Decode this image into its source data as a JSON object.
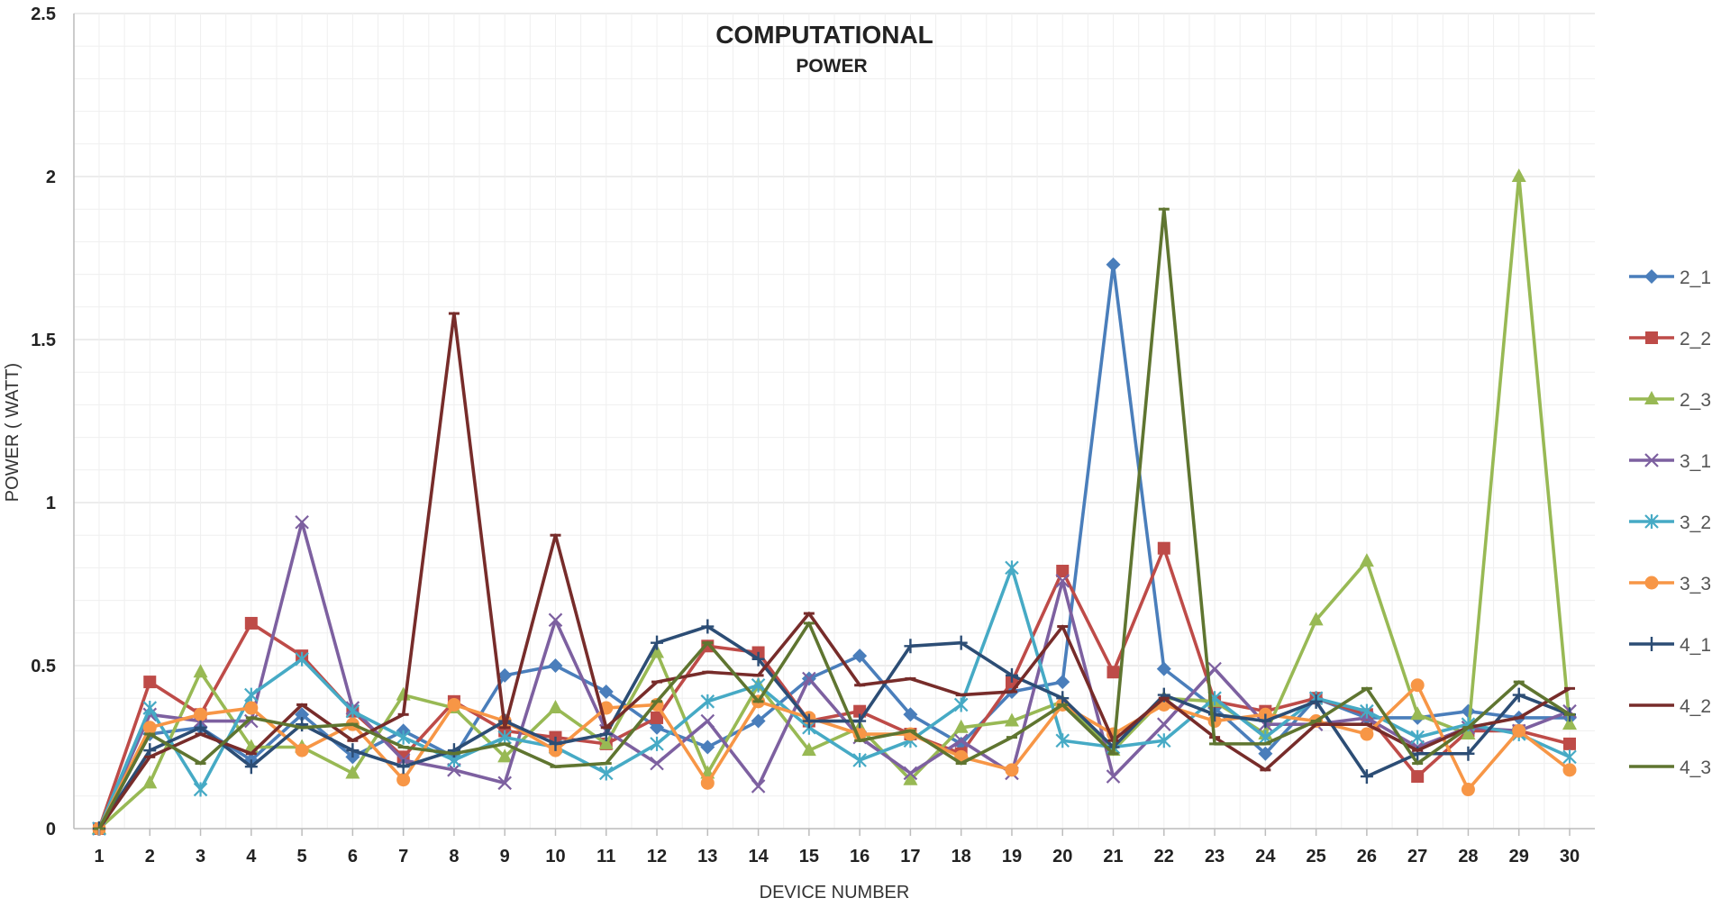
{
  "chart_data": {
    "type": "line",
    "title": "COMPUTATIONAL",
    "subtitle": "POWER",
    "xlabel": "DEVICE NUMBER",
    "ylabel": "POWER ( WATT)",
    "ylim": [
      0,
      2.5
    ],
    "yticks": [
      0,
      0.5,
      1,
      1.5,
      2,
      2.5
    ],
    "ytick_labels": [
      "0",
      "0.5",
      "1",
      "1.5",
      "2",
      "2.5"
    ],
    "grid": true,
    "legend_position": "right",
    "categories": [
      "1",
      "2",
      "3",
      "4",
      "5",
      "6",
      "7",
      "8",
      "9",
      "10",
      "11",
      "12",
      "13",
      "14",
      "15",
      "16",
      "17",
      "18",
      "19",
      "20",
      "21",
      "22",
      "23",
      "24",
      "25",
      "26",
      "27",
      "28",
      "29",
      "30"
    ],
    "series": [
      {
        "name": "2_1",
        "color": "#4a7ebb",
        "marker": "diamond",
        "values": [
          0,
          0.29,
          0.31,
          0.21,
          0.35,
          0.22,
          0.3,
          0.22,
          0.47,
          0.5,
          0.42,
          0.31,
          0.25,
          0.33,
          0.46,
          0.53,
          0.35,
          0.26,
          0.42,
          0.45,
          1.73,
          0.49,
          0.37,
          0.23,
          0.4,
          0.34,
          0.34,
          0.36,
          0.34,
          0.34
        ]
      },
      {
        "name": "2_2",
        "color": "#be4b48",
        "marker": "square",
        "values": [
          0,
          0.45,
          0.35,
          0.63,
          0.53,
          0.36,
          0.22,
          0.39,
          0.3,
          0.28,
          0.26,
          0.34,
          0.56,
          0.54,
          0.33,
          0.36,
          0.29,
          0.23,
          0.45,
          0.79,
          0.48,
          0.86,
          0.39,
          0.36,
          0.4,
          0.35,
          0.16,
          0.3,
          0.3,
          0.26
        ]
      },
      {
        "name": "2_3",
        "color": "#98b954",
        "marker": "triangle",
        "values": [
          0,
          0.14,
          0.48,
          0.25,
          0.25,
          0.17,
          0.41,
          0.37,
          0.22,
          0.37,
          0.26,
          0.54,
          0.17,
          0.44,
          0.24,
          0.31,
          0.15,
          0.31,
          0.33,
          0.39,
          0.24,
          0.4,
          0.39,
          0.29,
          0.64,
          0.82,
          0.35,
          0.29,
          2.0,
          0.32
        ]
      },
      {
        "name": "3_1",
        "color": "#7d60a0",
        "marker": "x",
        "values": [
          0,
          0.35,
          0.33,
          0.33,
          0.94,
          0.37,
          0.21,
          0.18,
          0.14,
          0.64,
          0.3,
          0.2,
          0.33,
          0.13,
          0.46,
          0.28,
          0.17,
          0.27,
          0.17,
          0.76,
          0.16,
          0.32,
          0.49,
          0.32,
          0.32,
          0.34,
          0.25,
          0.31,
          0.3,
          0.36
        ]
      },
      {
        "name": "3_2",
        "color": "#46aac5",
        "marker": "asterisk",
        "values": [
          0,
          0.37,
          0.12,
          0.41,
          0.52,
          0.36,
          0.28,
          0.21,
          0.28,
          0.25,
          0.17,
          0.26,
          0.39,
          0.44,
          0.31,
          0.21,
          0.27,
          0.38,
          0.8,
          0.27,
          0.25,
          0.27,
          0.4,
          0.28,
          0.4,
          0.36,
          0.28,
          0.32,
          0.29,
          0.22
        ]
      },
      {
        "name": "3_3",
        "color": "#f79646",
        "marker": "circle",
        "values": [
          0,
          0.31,
          0.35,
          0.37,
          0.24,
          0.32,
          0.15,
          0.38,
          0.33,
          0.24,
          0.37,
          0.38,
          0.14,
          0.39,
          0.34,
          0.29,
          0.29,
          0.22,
          0.18,
          0.38,
          0.29,
          0.38,
          0.33,
          0.35,
          0.33,
          0.29,
          0.44,
          0.12,
          0.3,
          0.18
        ]
      },
      {
        "name": "4_1",
        "color": "#2c4d75",
        "marker": "plus",
        "values": [
          0,
          0.24,
          0.31,
          0.19,
          0.32,
          0.24,
          0.19,
          0.24,
          0.33,
          0.26,
          0.29,
          0.57,
          0.62,
          0.52,
          0.33,
          0.33,
          0.56,
          0.57,
          0.47,
          0.4,
          0.25,
          0.41,
          0.35,
          0.33,
          0.39,
          0.16,
          0.23,
          0.23,
          0.41,
          0.35
        ]
      },
      {
        "name": "4_2",
        "color": "#772c2a",
        "marker": "dash",
        "values": [
          0,
          0.22,
          0.29,
          0.23,
          0.38,
          0.27,
          0.35,
          1.58,
          0.31,
          0.9,
          0.31,
          0.45,
          0.48,
          0.47,
          0.66,
          0.44,
          0.46,
          0.41,
          0.42,
          0.62,
          0.27,
          0.4,
          0.28,
          0.18,
          0.32,
          0.32,
          0.24,
          0.31,
          0.34,
          0.43
        ]
      },
      {
        "name": "4_3",
        "color": "#5f7530",
        "marker": "dash",
        "values": [
          0,
          0.29,
          0.2,
          0.34,
          0.31,
          0.32,
          0.25,
          0.23,
          0.26,
          0.19,
          0.2,
          0.39,
          0.57,
          0.39,
          0.63,
          0.27,
          0.3,
          0.2,
          0.28,
          0.38,
          0.23,
          1.9,
          0.26,
          0.26,
          0.33,
          0.43,
          0.2,
          0.31,
          0.45,
          0.35
        ]
      }
    ]
  }
}
